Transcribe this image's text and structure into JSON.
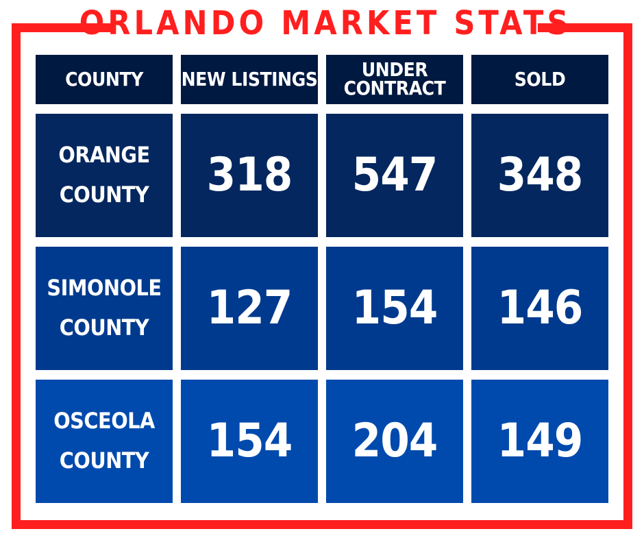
{
  "title": "ORLANDO MARKET STATS",
  "colors": {
    "frame": "#ff1f1f",
    "header_bg": "#001940",
    "row_bgs": [
      "#04275f",
      "#003a8e",
      "#004aad"
    ],
    "text": "#ffffff"
  },
  "table": {
    "headers": [
      "COUNTY",
      "NEW LISTINGS",
      "UNDER\nCONTRACT",
      "SOLD"
    ],
    "rows": [
      {
        "county": "ORANGE\nCOUNTY",
        "new_listings": "318",
        "under_contract": "547",
        "sold": "348"
      },
      {
        "county": "SIMONOLE\nCOUNTY",
        "new_listings": "127",
        "under_contract": "154",
        "sold": "146"
      },
      {
        "county": "OSCEOLA\nCOUNTY",
        "new_listings": "154",
        "under_contract": "204",
        "sold": "149"
      }
    ]
  }
}
